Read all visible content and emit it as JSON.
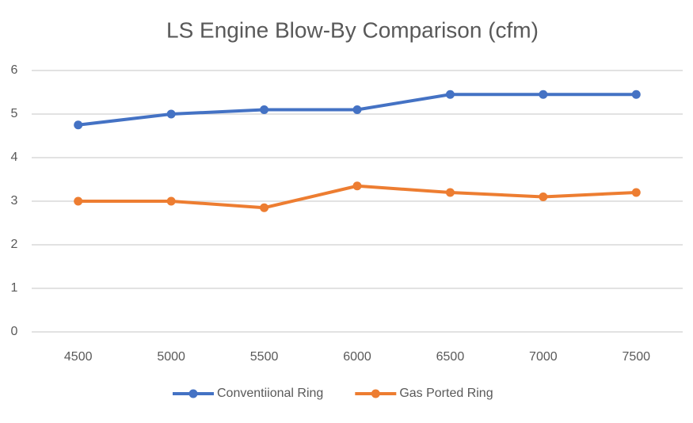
{
  "chart_data": {
    "type": "line",
    "title": "LS Engine Blow-By Comparison (cfm)",
    "categories": [
      "4500",
      "5000",
      "5500",
      "6000",
      "6500",
      "7000",
      "7500"
    ],
    "series": [
      {
        "name": "Conventiional Ring",
        "color": "#4472c4",
        "values": [
          4.75,
          5.0,
          5.1,
          5.1,
          5.45,
          5.45,
          5.45
        ]
      },
      {
        "name": "Gas Ported Ring",
        "color": "#ed7d31",
        "values": [
          3.0,
          3.0,
          2.85,
          3.35,
          3.2,
          3.1,
          3.2
        ]
      }
    ],
    "ylim": [
      0,
      6
    ],
    "yticks": [
      0,
      1,
      2,
      3,
      4,
      5,
      6
    ],
    "grid": true,
    "legend": "bottom"
  }
}
